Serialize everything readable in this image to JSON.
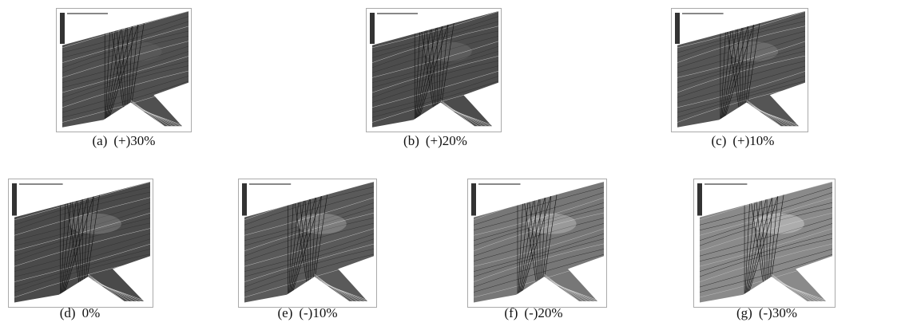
{
  "panels": [
    {
      "label": "(a)",
      "caption": "(+)30%"
    },
    {
      "label": "(b)",
      "caption": "(+)20%"
    },
    {
      "label": "(c)",
      "caption": "(+)10%"
    },
    {
      "label": "(d)",
      "caption": "0%"
    },
    {
      "label": "(e)",
      "caption": "(-)10%"
    },
    {
      "label": "(f)",
      "caption": "(-)20%"
    },
    {
      "label": "(g)",
      "caption": "(-)30%"
    }
  ]
}
